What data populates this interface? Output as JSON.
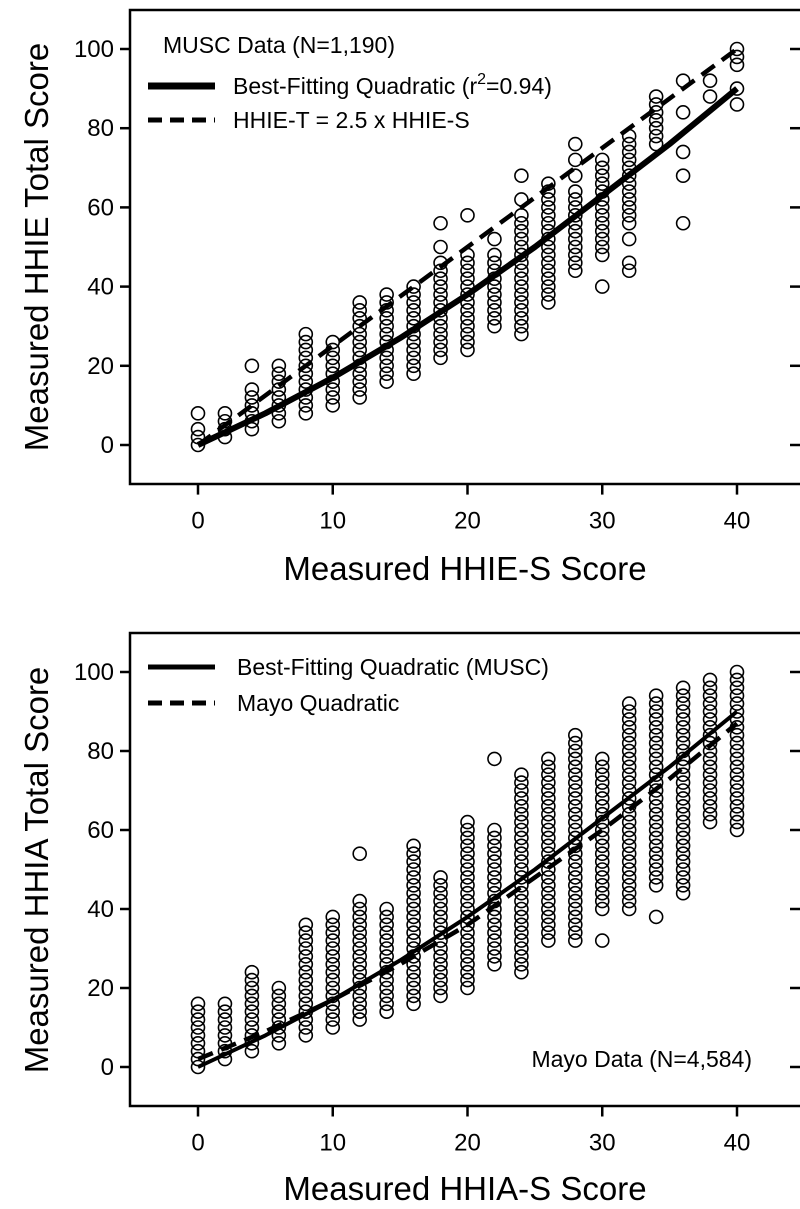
{
  "chart_data": [
    {
      "type": "scatter",
      "xlabel": "Measured HHIE-S Score",
      "ylabel": "Measured HHIE Total Score",
      "xlim": [
        -5,
        45
      ],
      "ylim": [
        -10,
        110
      ],
      "xticks": [
        0,
        10,
        20,
        30,
        40
      ],
      "yticks": [
        0,
        20,
        40,
        60,
        80,
        100
      ],
      "grid": false,
      "annotation": "MUSC Data (N=1,190)",
      "legend_position": "top-left",
      "series": [
        {
          "kind": "points",
          "marker": "open-circle",
          "points": [
            [
              0,
              0
            ],
            [
              0,
              2
            ],
            [
              0,
              4
            ],
            [
              0,
              8
            ],
            [
              2,
              2
            ],
            [
              2,
              4
            ],
            [
              2,
              6
            ],
            [
              2,
              8
            ],
            [
              4,
              4
            ],
            [
              4,
              6
            ],
            [
              4,
              8
            ],
            [
              4,
              10
            ],
            [
              4,
              12
            ],
            [
              4,
              14
            ],
            [
              4,
              20
            ],
            [
              6,
              6
            ],
            [
              6,
              8
            ],
            [
              6,
              10
            ],
            [
              6,
              12
            ],
            [
              6,
              14
            ],
            [
              6,
              16
            ],
            [
              6,
              18
            ],
            [
              6,
              20
            ],
            [
              8,
              8
            ],
            [
              8,
              10
            ],
            [
              8,
              12
            ],
            [
              8,
              14
            ],
            [
              8,
              16
            ],
            [
              8,
              18
            ],
            [
              8,
              20
            ],
            [
              8,
              22
            ],
            [
              8,
              24
            ],
            [
              8,
              26
            ],
            [
              8,
              28
            ],
            [
              10,
              10
            ],
            [
              10,
              12
            ],
            [
              10,
              14
            ],
            [
              10,
              16
            ],
            [
              10,
              18
            ],
            [
              10,
              20
            ],
            [
              10,
              22
            ],
            [
              10,
              24
            ],
            [
              10,
              26
            ],
            [
              12,
              12
            ],
            [
              12,
              14
            ],
            [
              12,
              16
            ],
            [
              12,
              18
            ],
            [
              12,
              20
            ],
            [
              12,
              22
            ],
            [
              12,
              24
            ],
            [
              12,
              26
            ],
            [
              12,
              28
            ],
            [
              12,
              30
            ],
            [
              12,
              32
            ],
            [
              12,
              34
            ],
            [
              12,
              36
            ],
            [
              14,
              16
            ],
            [
              14,
              18
            ],
            [
              14,
              20
            ],
            [
              14,
              22
            ],
            [
              14,
              24
            ],
            [
              14,
              26
            ],
            [
              14,
              28
            ],
            [
              14,
              30
            ],
            [
              14,
              32
            ],
            [
              14,
              34
            ],
            [
              14,
              36
            ],
            [
              14,
              38
            ],
            [
              16,
              18
            ],
            [
              16,
              20
            ],
            [
              16,
              22
            ],
            [
              16,
              24
            ],
            [
              16,
              26
            ],
            [
              16,
              28
            ],
            [
              16,
              30
            ],
            [
              16,
              32
            ],
            [
              16,
              34
            ],
            [
              16,
              36
            ],
            [
              16,
              38
            ],
            [
              16,
              40
            ],
            [
              18,
              22
            ],
            [
              18,
              24
            ],
            [
              18,
              26
            ],
            [
              18,
              28
            ],
            [
              18,
              30
            ],
            [
              18,
              32
            ],
            [
              18,
              34
            ],
            [
              18,
              36
            ],
            [
              18,
              38
            ],
            [
              18,
              40
            ],
            [
              18,
              42
            ],
            [
              18,
              44
            ],
            [
              18,
              46
            ],
            [
              18,
              50
            ],
            [
              18,
              56
            ],
            [
              20,
              24
            ],
            [
              20,
              26
            ],
            [
              20,
              28
            ],
            [
              20,
              30
            ],
            [
              20,
              32
            ],
            [
              20,
              34
            ],
            [
              20,
              36
            ],
            [
              20,
              38
            ],
            [
              20,
              40
            ],
            [
              20,
              42
            ],
            [
              20,
              44
            ],
            [
              20,
              46
            ],
            [
              20,
              48
            ],
            [
              20,
              58
            ],
            [
              22,
              30
            ],
            [
              22,
              32
            ],
            [
              22,
              34
            ],
            [
              22,
              36
            ],
            [
              22,
              38
            ],
            [
              22,
              40
            ],
            [
              22,
              42
            ],
            [
              22,
              44
            ],
            [
              22,
              46
            ],
            [
              22,
              48
            ],
            [
              22,
              52
            ],
            [
              24,
              28
            ],
            [
              24,
              30
            ],
            [
              24,
              32
            ],
            [
              24,
              34
            ],
            [
              24,
              36
            ],
            [
              24,
              38
            ],
            [
              24,
              40
            ],
            [
              24,
              42
            ],
            [
              24,
              44
            ],
            [
              24,
              46
            ],
            [
              24,
              48
            ],
            [
              24,
              50
            ],
            [
              24,
              52
            ],
            [
              24,
              54
            ],
            [
              24,
              56
            ],
            [
              24,
              58
            ],
            [
              24,
              62
            ],
            [
              24,
              68
            ],
            [
              26,
              36
            ],
            [
              26,
              38
            ],
            [
              26,
              40
            ],
            [
              26,
              42
            ],
            [
              26,
              44
            ],
            [
              26,
              46
            ],
            [
              26,
              48
            ],
            [
              26,
              50
            ],
            [
              26,
              52
            ],
            [
              26,
              54
            ],
            [
              26,
              56
            ],
            [
              26,
              58
            ],
            [
              26,
              60
            ],
            [
              26,
              62
            ],
            [
              26,
              64
            ],
            [
              26,
              66
            ],
            [
              28,
              44
            ],
            [
              28,
              46
            ],
            [
              28,
              48
            ],
            [
              28,
              50
            ],
            [
              28,
              52
            ],
            [
              28,
              54
            ],
            [
              28,
              56
            ],
            [
              28,
              58
            ],
            [
              28,
              60
            ],
            [
              28,
              62
            ],
            [
              28,
              64
            ],
            [
              28,
              68
            ],
            [
              28,
              72
            ],
            [
              28,
              76
            ],
            [
              30,
              40
            ],
            [
              30,
              48
            ],
            [
              30,
              50
            ],
            [
              30,
              52
            ],
            [
              30,
              54
            ],
            [
              30,
              56
            ],
            [
              30,
              58
            ],
            [
              30,
              60
            ],
            [
              30,
              62
            ],
            [
              30,
              64
            ],
            [
              30,
              66
            ],
            [
              30,
              68
            ],
            [
              30,
              70
            ],
            [
              30,
              72
            ],
            [
              32,
              44
            ],
            [
              32,
              46
            ],
            [
              32,
              52
            ],
            [
              32,
              56
            ],
            [
              32,
              58
            ],
            [
              32,
              60
            ],
            [
              32,
              62
            ],
            [
              32,
              64
            ],
            [
              32,
              66
            ],
            [
              32,
              68
            ],
            [
              32,
              70
            ],
            [
              32,
              72
            ],
            [
              32,
              74
            ],
            [
              32,
              76
            ],
            [
              32,
              78
            ],
            [
              34,
              76
            ],
            [
              34,
              78
            ],
            [
              34,
              80
            ],
            [
              34,
              82
            ],
            [
              34,
              84
            ],
            [
              34,
              86
            ],
            [
              34,
              88
            ],
            [
              36,
              56
            ],
            [
              36,
              68
            ],
            [
              36,
              74
            ],
            [
              36,
              84
            ],
            [
              36,
              92
            ],
            [
              38,
              88
            ],
            [
              38,
              92
            ],
            [
              40,
              86
            ],
            [
              40,
              90
            ],
            [
              40,
              96
            ],
            [
              40,
              98
            ],
            [
              40,
              100
            ]
          ]
        },
        {
          "name": "Best-Fitting Quadratic (r²=0.94)",
          "kind": "curve",
          "style": "solid-thick",
          "x": [
            0,
            5,
            10,
            15,
            20,
            25,
            30,
            35,
            40
          ],
          "y": [
            0,
            8,
            17,
            27,
            38,
            50,
            63,
            76,
            90
          ]
        },
        {
          "name": "HHIE-T = 2.5 x HHIE-S",
          "kind": "curve",
          "style": "dashed",
          "x": [
            0,
            40
          ],
          "y": [
            0,
            100
          ]
        }
      ]
    },
    {
      "type": "scatter",
      "xlabel": "Measured HHIA-S Score",
      "ylabel": "Measured HHIA Total Score",
      "xlim": [
        -5,
        45
      ],
      "ylim": [
        -10,
        110
      ],
      "xticks": [
        0,
        10,
        20,
        30,
        40
      ],
      "yticks": [
        0,
        20,
        40,
        60,
        80,
        100
      ],
      "grid": false,
      "annotation": "Mayo Data (N=4,584)",
      "legend_position": "top-left",
      "series": [
        {
          "kind": "columns",
          "marker": "open-circle",
          "columns": [
            {
              "x": 0,
              "min": 0,
              "max": 16
            },
            {
              "x": 2,
              "min": 2,
              "max": 16
            },
            {
              "x": 4,
              "min": 4,
              "max": 24
            },
            {
              "x": 6,
              "min": 6,
              "max": 20
            },
            {
              "x": 8,
              "min": 8,
              "max": 36
            },
            {
              "x": 10,
              "min": 10,
              "max": 38
            },
            {
              "x": 12,
              "min": 12,
              "max": 42,
              "extra": [
                54
              ]
            },
            {
              "x": 14,
              "min": 14,
              "max": 40
            },
            {
              "x": 16,
              "min": 16,
              "max": 56
            },
            {
              "x": 18,
              "min": 18,
              "max": 48
            },
            {
              "x": 20,
              "min": 20,
              "max": 62
            },
            {
              "x": 22,
              "min": 26,
              "max": 60,
              "extra": [
                78
              ]
            },
            {
              "x": 24,
              "min": 24,
              "max": 74
            },
            {
              "x": 26,
              "min": 32,
              "max": 78
            },
            {
              "x": 28,
              "min": 32,
              "max": 84
            },
            {
              "x": 30,
              "min": 40,
              "max": 78,
              "extra": [
                32
              ]
            },
            {
              "x": 32,
              "min": 40,
              "max": 92
            },
            {
              "x": 34,
              "min": 46,
              "max": 94,
              "extra": [
                38
              ]
            },
            {
              "x": 36,
              "min": 44,
              "max": 96
            },
            {
              "x": 38,
              "min": 62,
              "max": 98
            },
            {
              "x": 40,
              "min": 60,
              "max": 100
            }
          ]
        },
        {
          "name": "Best-Fitting Quadratic (MUSC)",
          "kind": "curve",
          "style": "solid",
          "x": [
            0,
            5,
            10,
            15,
            20,
            25,
            30,
            35,
            40
          ],
          "y": [
            0,
            8,
            17,
            27,
            38,
            50,
            63,
            76,
            90
          ]
        },
        {
          "name": "Mayo Quadratic",
          "kind": "curve",
          "style": "dashed",
          "x": [
            0,
            5,
            10,
            15,
            20,
            25,
            30,
            35,
            40
          ],
          "y": [
            2,
            9,
            17,
            26,
            36,
            48,
            60,
            73,
            87
          ]
        }
      ]
    }
  ]
}
